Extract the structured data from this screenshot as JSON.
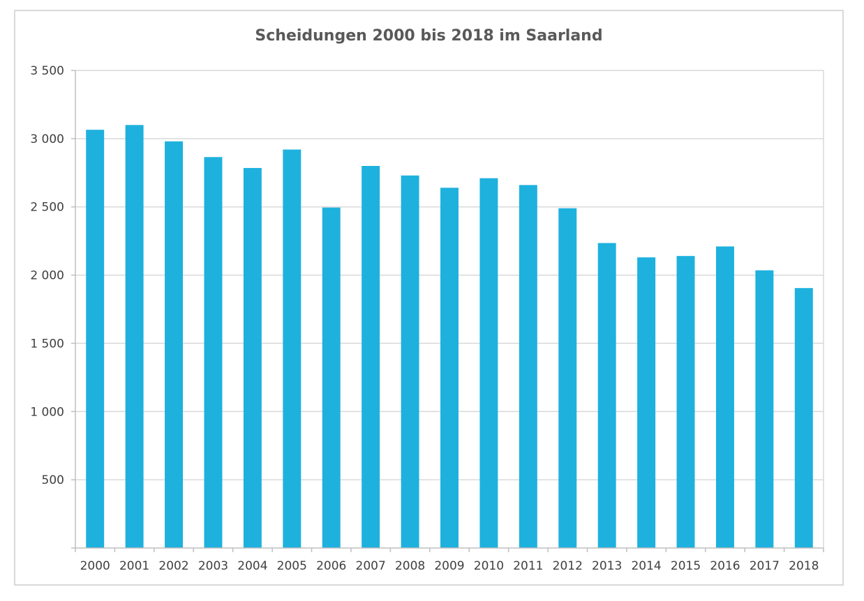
{
  "chart_data": {
    "type": "bar",
    "title": "Scheidungen 2000 bis 2018 im Saarland",
    "xlabel": "",
    "ylabel": "",
    "categories": [
      "2000",
      "2001",
      "2002",
      "2003",
      "2004",
      "2005",
      "2006",
      "2007",
      "2008",
      "2009",
      "2010",
      "2011",
      "2012",
      "2013",
      "2014",
      "2015",
      "2016",
      "2017",
      "2018"
    ],
    "values": [
      3065,
      3100,
      2980,
      2865,
      2785,
      2920,
      2495,
      2800,
      2730,
      2640,
      2710,
      2660,
      2490,
      2235,
      2130,
      2140,
      2210,
      2035,
      1905
    ],
    "ylim": [
      0,
      3500
    ],
    "yticks": [
      0,
      500,
      1000,
      1500,
      2000,
      2500,
      3000,
      3500
    ],
    "ytick_labels": [
      "",
      "500",
      "1 000",
      "1 500",
      "2 000",
      "2 500",
      "3 000",
      "3 500"
    ],
    "grid": true,
    "legend": "none",
    "bar_color": "#1eb1de",
    "grid_color": "#d9d9d9"
  }
}
